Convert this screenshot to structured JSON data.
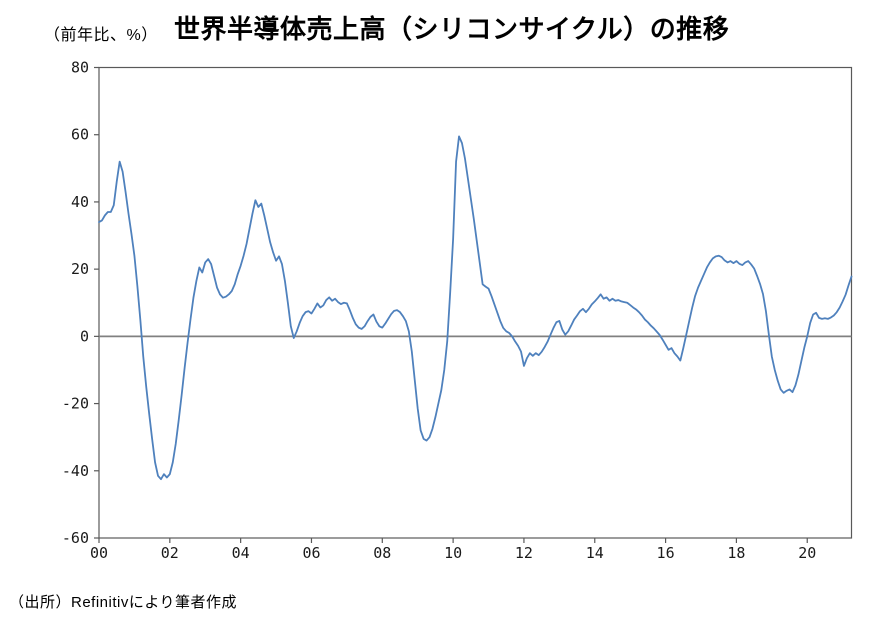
{
  "chart_data": {
    "type": "line",
    "title": "世界半導体売上高（シリコンサイクル）の推移",
    "y_axis_unit_label": "（前年比、%）",
    "source_note": "（出所）Refinitivにより筆者作成",
    "x_range": [
      2000,
      2021.25
    ],
    "y_range": [
      -60,
      80
    ],
    "y_ticks": [
      80,
      60,
      40,
      20,
      0,
      -20,
      -40,
      -60
    ],
    "x_ticks": [
      {
        "label": "00",
        "year": 2000
      },
      {
        "label": "02",
        "year": 2002
      },
      {
        "label": "04",
        "year": 2004
      },
      {
        "label": "06",
        "year": 2006
      },
      {
        "label": "08",
        "year": 2008
      },
      {
        "label": "10",
        "year": 2010
      },
      {
        "label": "12",
        "year": 2012
      },
      {
        "label": "14",
        "year": 2014
      },
      {
        "label": "16",
        "year": 2016
      },
      {
        "label": "18",
        "year": 2018
      },
      {
        "label": "20",
        "year": 2020
      }
    ],
    "start_year": 2000,
    "points_per_year": 12,
    "legend": "none",
    "grid": "zero-line-only",
    "line_color": "#4f81bd",
    "zero_line_color": "#808080",
    "frame_color": "#595959",
    "values": [
      34,
      34.5,
      36,
      37,
      37,
      39,
      46,
      52,
      49,
      43,
      36.5,
      30.5,
      24,
      15,
      5,
      -6,
      -15,
      -23,
      -30.5,
      -37.5,
      -41.5,
      -42.5,
      -41,
      -42,
      -41,
      -37.5,
      -32,
      -25,
      -17.5,
      -9.5,
      -2,
      5,
      11.5,
      16.5,
      20.5,
      19,
      22,
      23,
      21.5,
      18,
      14.5,
      12.5,
      11.5,
      11.8,
      12.5,
      13.5,
      15.5,
      18.5,
      21,
      24,
      27.5,
      32,
      36.5,
      40.5,
      38.5,
      39.5,
      36,
      32,
      28,
      25,
      22.5,
      23.8,
      21.5,
      16.5,
      10,
      3,
      -0.5,
      1.5,
      4,
      6,
      7.2,
      7.5,
      6.8,
      8.2,
      9.8,
      8.6,
      9.2,
      10.8,
      11.6,
      10.6,
      11.2,
      10.2,
      9.6,
      10,
      9.8,
      7.8,
      5.5,
      3.6,
      2.6,
      2.2,
      3,
      4.5,
      5.8,
      6.5,
      4.4,
      3,
      2.6,
      3.8,
      5.2,
      6.6,
      7.6,
      7.8,
      7.2,
      6,
      4.5,
      1.5,
      -4.5,
      -13,
      -21.5,
      -28,
      -30.5,
      -31,
      -30,
      -27.5,
      -24,
      -20,
      -16,
      -10,
      -1.5,
      13,
      29,
      52,
      59.5,
      57.5,
      53,
      47,
      41,
      35,
      28.5,
      22,
      15.5,
      14.8,
      14.2,
      12,
      9.5,
      7,
      4.5,
      2.5,
      1.5,
      1,
      0,
      -1.5,
      -2.8,
      -4.5,
      -8.8,
      -6.5,
      -5,
      -5.8,
      -5,
      -5.6,
      -4.6,
      -3.2,
      -1.6,
      0.5,
      2.5,
      4.2,
      4.6,
      2,
      0.5,
      1.5,
      3.2,
      5,
      6.2,
      7.5,
      8.2,
      7.2,
      8.2,
      9.5,
      10.4,
      11.4,
      12.5,
      11.2,
      11.6,
      10.6,
      11.2,
      10.6,
      10.8,
      10.4,
      10.2,
      10,
      9.3,
      8.6,
      8,
      7.2,
      6.2,
      5,
      4.2,
      3.2,
      2.4,
      1.4,
      0.4,
      -1,
      -2.5,
      -4,
      -3.5,
      -5,
      -6,
      -7.2,
      -3.5,
      0.5,
      4.5,
      8.5,
      12,
      14.5,
      16.5,
      18.5,
      20.5,
      22,
      23.2,
      23.8,
      24,
      23.6,
      22.6,
      22,
      22.4,
      21.8,
      22.4,
      21.6,
      21.2,
      22,
      22.4,
      21.4,
      20.2,
      18,
      15.6,
      12.6,
      7.5,
      0.5,
      -6,
      -10,
      -13.2,
      -15.8,
      -16.8,
      -16.2,
      -15.8,
      -16.6,
      -14.6,
      -11.4,
      -7.4,
      -3.4,
      0,
      4,
      6.5,
      7,
      5.5,
      5.2,
      5.4,
      5.2,
      5.6,
      6.2,
      7.2,
      8.6,
      10.4,
      12.4,
      15.2,
      17.8
    ]
  }
}
